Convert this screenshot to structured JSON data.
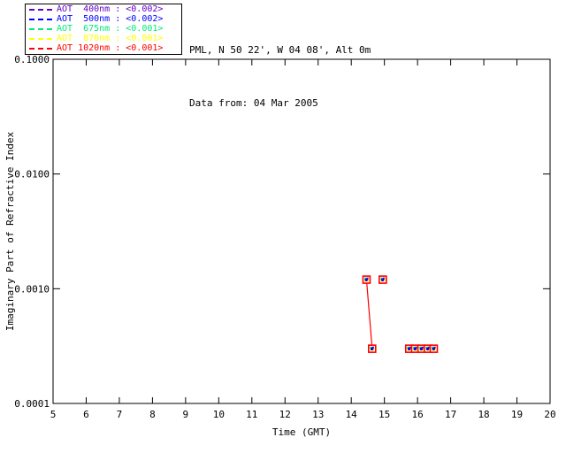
{
  "header": {
    "site_line": "PML, N 50 22', W 04 08', Alt 0m",
    "date_line": "Data from: 04 Mar 2005"
  },
  "legend": {
    "items": [
      {
        "name": "AOT 400nm",
        "label": "AOT  400nm : <0.002>",
        "color": "#6400c8"
      },
      {
        "name": "AOT 500nm",
        "label": "AOT  500nm : <0.002>",
        "color": "#0000ff"
      },
      {
        "name": "AOT 675nm",
        "label": "AOT  675nm : <0.001>",
        "color": "#00e878"
      },
      {
        "name": "AOT 870nm",
        "label": "AOT  870nm : <0.001>",
        "color": "#ffff00"
      },
      {
        "name": "AOT 1020nm",
        "label": "AOT 1020nm : <0.001>",
        "color": "#ff0000"
      }
    ]
  },
  "chart_data": {
    "type": "line",
    "title": "",
    "xlabel": "Time (GMT)",
    "ylabel": "Imaginary Part of Refractive Index",
    "xlim": [
      5,
      20
    ],
    "ylim": [
      0.0001,
      0.1
    ],
    "yscale": "log",
    "grid": false,
    "xticks": [
      5,
      6,
      7,
      8,
      9,
      10,
      11,
      12,
      13,
      14,
      15,
      16,
      17,
      18,
      19,
      20
    ],
    "yticks": [
      {
        "value": 0.1,
        "label": "0.1000"
      },
      {
        "value": 0.01,
        "label": "0.0100"
      },
      {
        "value": 0.001,
        "label": "0.0010"
      },
      {
        "value": 0.0001,
        "label": "0.0001"
      }
    ],
    "series_note": "All five AOT wavelength series overlap at identical points; topmost (1020nm, red) outlines the markers",
    "points": [
      {
        "time": 14.46,
        "value": 0.0012
      },
      {
        "time": 14.63,
        "value": 0.0003
      },
      {
        "time": 14.95,
        "value": 0.0012
      },
      {
        "time": 15.75,
        "value": 0.0003
      },
      {
        "time": 15.93,
        "value": 0.0003
      },
      {
        "time": 16.12,
        "value": 0.0003
      },
      {
        "time": 16.31,
        "value": 0.0003
      },
      {
        "time": 16.49,
        "value": 0.0003
      }
    ],
    "line_segments": [
      [
        [
          14.46,
          0.0012
        ],
        [
          14.63,
          0.0003
        ]
      ],
      [
        [
          15.75,
          0.0003
        ],
        [
          16.49,
          0.0003
        ]
      ]
    ],
    "line_color": "#ff0000",
    "marker": {
      "outline_color": "#ff0000",
      "inner_colors": [
        "#ffff00",
        "#00e878",
        "#6400c8",
        "#0000ff"
      ]
    },
    "legend_position": "top-left-outside",
    "frame_color": "#000000"
  }
}
